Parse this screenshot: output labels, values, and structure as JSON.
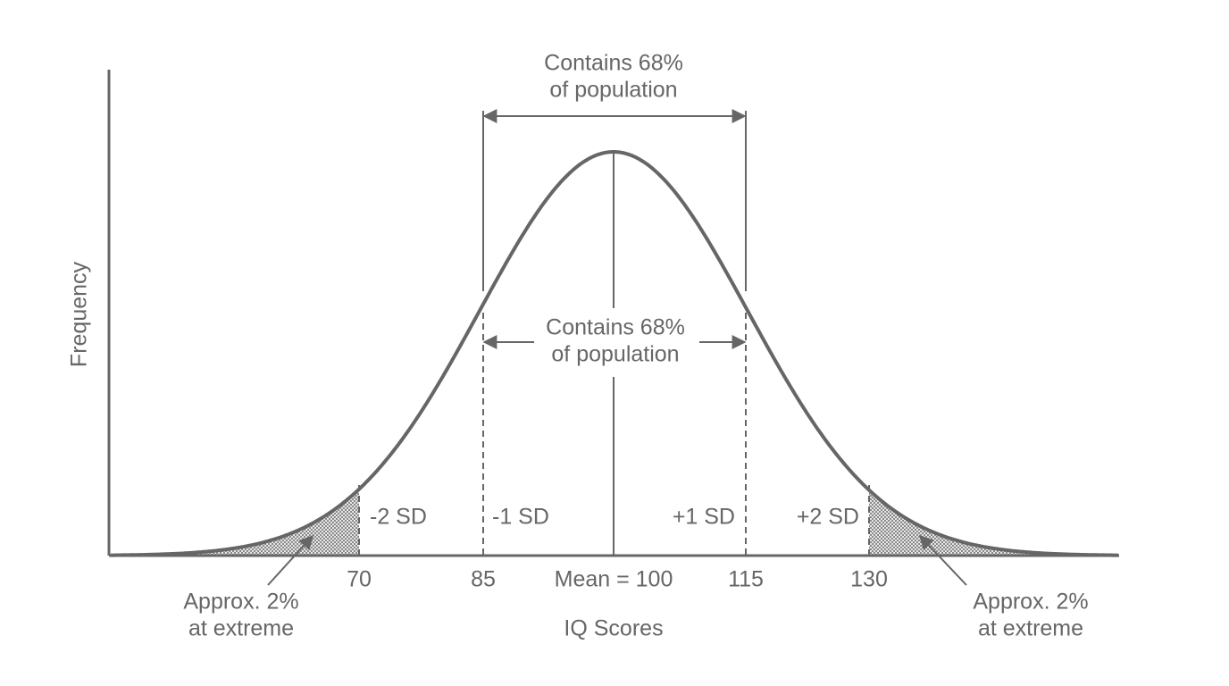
{
  "diagram": {
    "y_axis_label": "Frequency",
    "x_axis_label": "IQ Scores",
    "top_annotation": [
      "Contains 68%",
      "of population"
    ],
    "middle_annotation": [
      "Contains 68%",
      "of population"
    ],
    "sd_labels": [
      "-2 SD",
      "-1 SD",
      "+1 SD",
      "+2 SD"
    ],
    "ticks": [
      "70",
      "85",
      "Mean = 100",
      "115",
      "130"
    ],
    "left_tail": [
      "Approx. 2%",
      "at extreme"
    ],
    "right_tail": [
      "Approx. 2%",
      "at extreme"
    ]
  }
}
